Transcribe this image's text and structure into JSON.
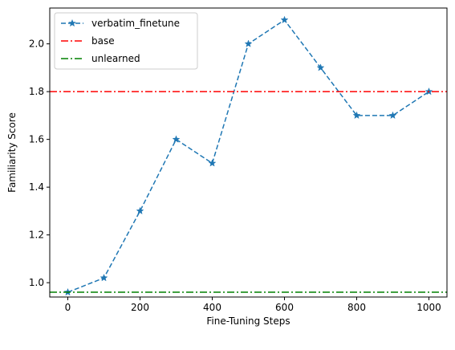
{
  "chart_data": {
    "type": "line",
    "title": "",
    "xlabel": "Fine-Tuning Steps",
    "ylabel": "Familiarity Score",
    "xlim": [
      -50,
      1050
    ],
    "ylim": [
      0.94,
      2.15
    ],
    "xticks": [
      0,
      200,
      400,
      600,
      800,
      1000
    ],
    "xtick_labels": [
      "0",
      "200",
      "400",
      "600",
      "800",
      "1000"
    ],
    "yticks": [
      1.0,
      1.2,
      1.4,
      1.6,
      1.8,
      2.0
    ],
    "ytick_labels": [
      "1.0",
      "1.2",
      "1.4",
      "1.6",
      "1.8",
      "2.0"
    ],
    "grid": false,
    "legend_position": "top-left",
    "series": [
      {
        "name": "verbatim_finetune",
        "kind": "line",
        "style": "dashed",
        "marker": "star",
        "color": "#1f77b4",
        "x": [
          0,
          100,
          200,
          300,
          400,
          500,
          600,
          700,
          800,
          900,
          1000
        ],
        "y": [
          0.96,
          1.02,
          1.3,
          1.6,
          1.5,
          2.0,
          2.1,
          1.9,
          1.7,
          1.7,
          1.8
        ]
      },
      {
        "name": "base",
        "kind": "hline",
        "style": "dashdot",
        "color": "#ff0000",
        "y": 1.8
      },
      {
        "name": "unlearned",
        "kind": "hline",
        "style": "dashdot",
        "color": "#008000",
        "y": 0.96
      }
    ]
  }
}
